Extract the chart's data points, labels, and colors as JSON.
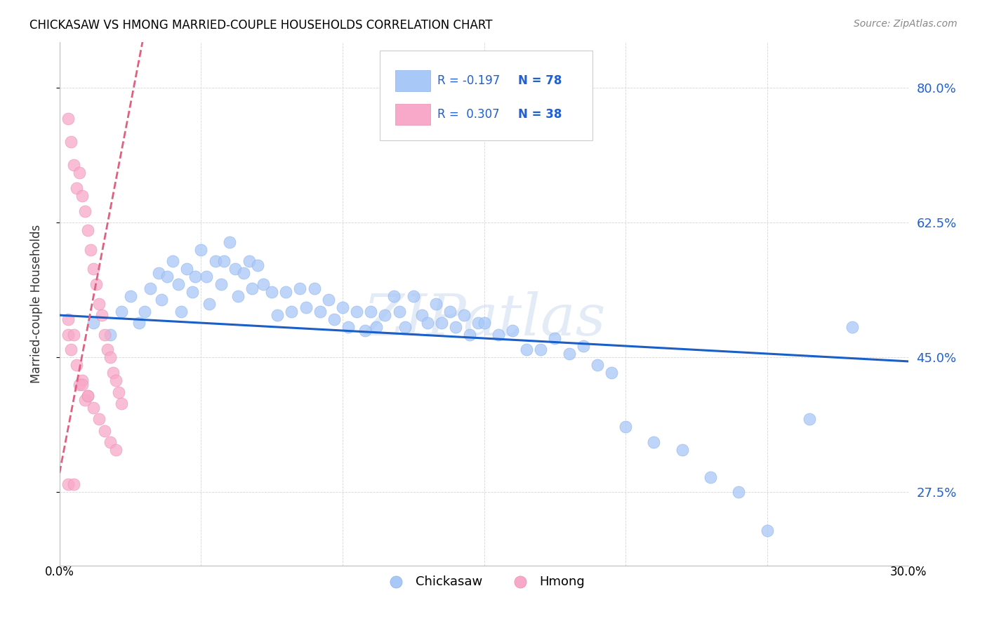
{
  "title": "CHICKASAW VS HMONG MARRIED-COUPLE HOUSEHOLDS CORRELATION CHART",
  "source": "Source: ZipAtlas.com",
  "ylabel": "Married-couple Households",
  "ytick_labels": [
    "27.5%",
    "45.0%",
    "62.5%",
    "80.0%"
  ],
  "ytick_values": [
    0.275,
    0.45,
    0.625,
    0.8
  ],
  "xlim": [
    0.0,
    0.3
  ],
  "ylim": [
    0.18,
    0.86
  ],
  "chickasaw_color": "#a8c8f8",
  "hmong_color": "#f8a8c8",
  "trendline_chickasaw_color": "#1a5fc8",
  "trendline_hmong_color": "#e06080",
  "watermark": "ZIPatlas",
  "legend_R_chickasaw": "-0.197",
  "legend_N_chickasaw": "78",
  "legend_R_hmong": "0.307",
  "legend_N_hmong": "38",
  "chickasaw_x": [
    0.012,
    0.018,
    0.022,
    0.025,
    0.028,
    0.03,
    0.032,
    0.035,
    0.036,
    0.038,
    0.04,
    0.042,
    0.043,
    0.045,
    0.047,
    0.048,
    0.05,
    0.052,
    0.053,
    0.055,
    0.057,
    0.058,
    0.06,
    0.062,
    0.063,
    0.065,
    0.067,
    0.068,
    0.07,
    0.072,
    0.075,
    0.077,
    0.08,
    0.082,
    0.085,
    0.087,
    0.09,
    0.092,
    0.095,
    0.097,
    0.1,
    0.102,
    0.105,
    0.108,
    0.11,
    0.112,
    0.115,
    0.118,
    0.12,
    0.122,
    0.125,
    0.128,
    0.13,
    0.133,
    0.135,
    0.138,
    0.14,
    0.143,
    0.145,
    0.148,
    0.15,
    0.155,
    0.16,
    0.165,
    0.17,
    0.175,
    0.18,
    0.185,
    0.19,
    0.195,
    0.2,
    0.21,
    0.22,
    0.23,
    0.24,
    0.25,
    0.265,
    0.28
  ],
  "chickasaw_y": [
    0.495,
    0.48,
    0.51,
    0.53,
    0.495,
    0.51,
    0.54,
    0.56,
    0.525,
    0.555,
    0.575,
    0.545,
    0.51,
    0.565,
    0.535,
    0.555,
    0.59,
    0.555,
    0.52,
    0.575,
    0.545,
    0.575,
    0.6,
    0.565,
    0.53,
    0.56,
    0.575,
    0.54,
    0.57,
    0.545,
    0.535,
    0.505,
    0.535,
    0.51,
    0.54,
    0.515,
    0.54,
    0.51,
    0.525,
    0.5,
    0.515,
    0.49,
    0.51,
    0.485,
    0.51,
    0.49,
    0.505,
    0.53,
    0.51,
    0.49,
    0.53,
    0.505,
    0.495,
    0.52,
    0.495,
    0.51,
    0.49,
    0.505,
    0.48,
    0.495,
    0.495,
    0.48,
    0.485,
    0.46,
    0.46,
    0.475,
    0.455,
    0.465,
    0.44,
    0.43,
    0.36,
    0.34,
    0.33,
    0.295,
    0.275,
    0.225,
    0.37,
    0.49
  ],
  "hmong_x": [
    0.003,
    0.004,
    0.005,
    0.006,
    0.007,
    0.008,
    0.009,
    0.01,
    0.011,
    0.012,
    0.013,
    0.014,
    0.015,
    0.016,
    0.017,
    0.018,
    0.019,
    0.02,
    0.021,
    0.022,
    0.003,
    0.004,
    0.006,
    0.008,
    0.01,
    0.012,
    0.014,
    0.016,
    0.018,
    0.02,
    0.003,
    0.005,
    0.007,
    0.009,
    0.003,
    0.005,
    0.008,
    0.01
  ],
  "hmong_y": [
    0.76,
    0.73,
    0.7,
    0.67,
    0.69,
    0.66,
    0.64,
    0.615,
    0.59,
    0.565,
    0.545,
    0.52,
    0.505,
    0.48,
    0.46,
    0.45,
    0.43,
    0.42,
    0.405,
    0.39,
    0.48,
    0.46,
    0.44,
    0.42,
    0.4,
    0.385,
    0.37,
    0.355,
    0.34,
    0.33,
    0.5,
    0.48,
    0.415,
    0.395,
    0.285,
    0.285,
    0.415,
    0.4
  ],
  "chick_trend_x0": 0.0,
  "chick_trend_y0": 0.505,
  "chick_trend_x1": 0.3,
  "chick_trend_y1": 0.445,
  "hmong_trend_x0": 0.0,
  "hmong_trend_y0": 0.3,
  "hmong_trend_x1": 0.022,
  "hmong_trend_y1": 0.72
}
